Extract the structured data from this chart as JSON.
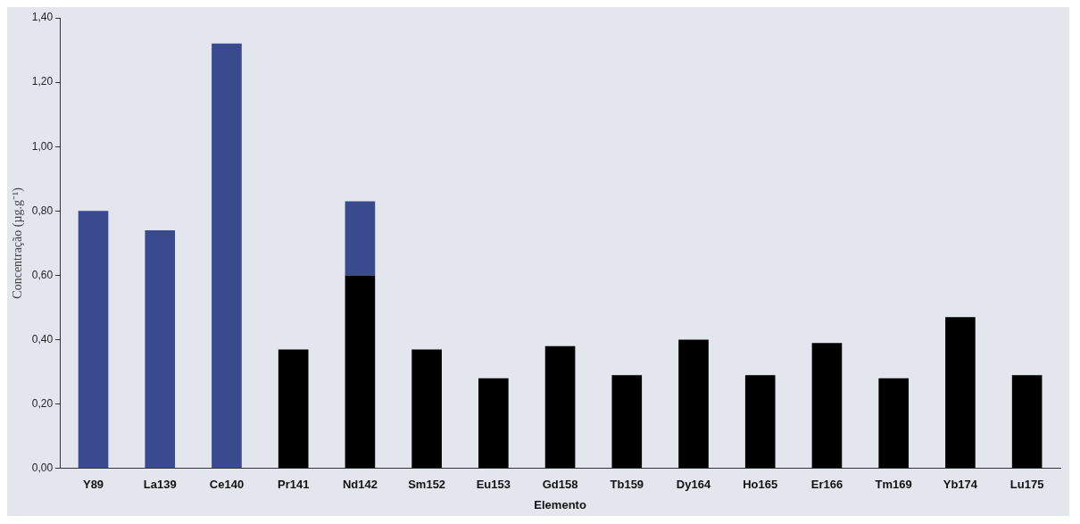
{
  "chart_data": {
    "type": "bar",
    "xlabel": "Elemento",
    "ylabel": "Concentração (µg.g⁻¹)",
    "categories": [
      "Y89",
      "La139",
      "Ce140",
      "Pr141",
      "Nd142",
      "Sm152",
      "Eu153",
      "Gd158",
      "Tb159",
      "Dy164",
      "Ho165",
      "Er166",
      "Tm169",
      "Yb174",
      "Lu175"
    ],
    "stacked": true,
    "series": [
      {
        "color": "#000000",
        "values": [
          null,
          null,
          null,
          0.37,
          0.6,
          0.37,
          0.28,
          0.38,
          0.29,
          0.4,
          0.29,
          0.39,
          0.28,
          0.47,
          0.29
        ]
      },
      {
        "color": "#3a4a8f",
        "values": [
          0.8,
          0.74,
          1.32,
          null,
          0.23,
          null,
          null,
          null,
          null,
          null,
          null,
          null,
          null,
          null,
          null
        ]
      }
    ],
    "ylim": [
      0,
      1.4
    ],
    "yticks": [
      {
        "value": 0,
        "label": "0,00"
      },
      {
        "value": 0.2,
        "label": "0,20"
      },
      {
        "value": 0.4,
        "label": "0,40"
      },
      {
        "value": 0.6,
        "label": "0,60"
      },
      {
        "value": 0.8,
        "label": "0,80"
      },
      {
        "value": 1.0,
        "label": "1,00"
      },
      {
        "value": 1.2,
        "label": "1,20"
      },
      {
        "value": 1.4,
        "label": "1,40"
      }
    ],
    "grid": false,
    "legend": false
  }
}
